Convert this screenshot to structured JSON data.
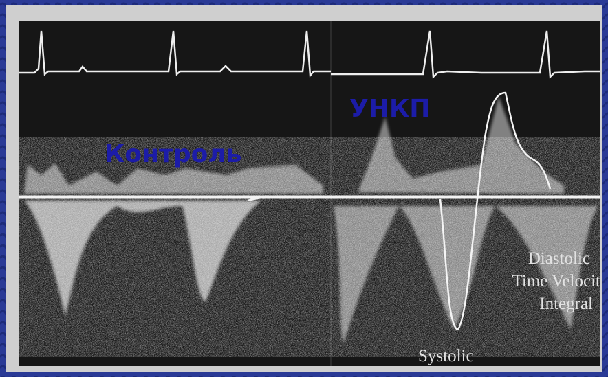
{
  "labels": {
    "control": "Контроль",
    "unkp": "УНКП",
    "diastolic": [
      "Diastolic",
      "Time Velocit",
      "Integral"
    ],
    "systolic": "Systolic"
  }
}
